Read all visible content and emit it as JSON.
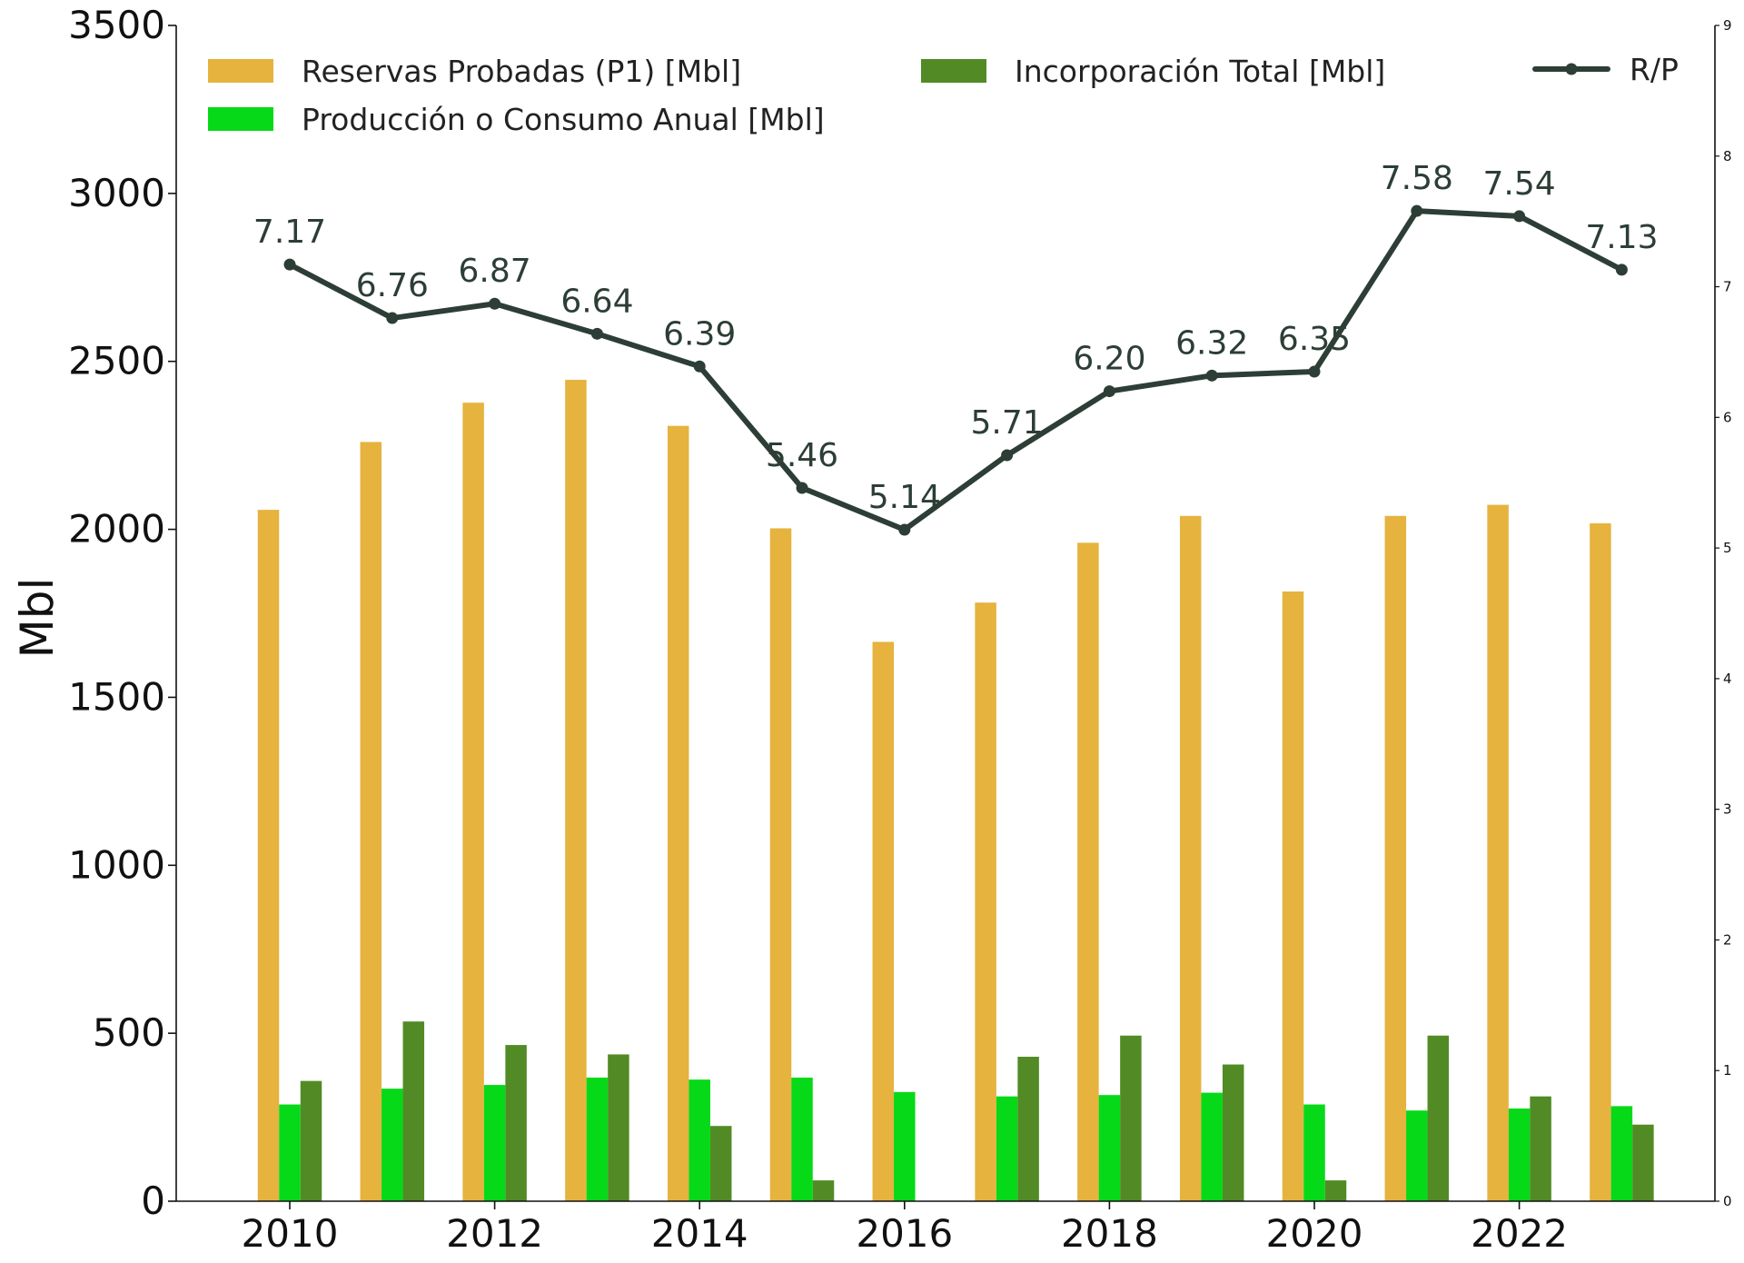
{
  "chart_data": {
    "type": "bar",
    "x": [
      2010,
      2011,
      2012,
      2013,
      2014,
      2015,
      2016,
      2017,
      2018,
      2019,
      2020,
      2021,
      2022,
      2023
    ],
    "xticks": [
      "2010",
      "2012",
      "2014",
      "2016",
      "2018",
      "2020",
      "2022"
    ],
    "ylabel": "Mbl",
    "ylim": [
      0,
      3500
    ],
    "yticks": [
      "0",
      "500",
      "1000",
      "1500",
      "2000",
      "2500",
      "3000",
      "3500"
    ],
    "y2lim": [
      0,
      9
    ],
    "y2ticks": [
      "0",
      "1",
      "2",
      "3",
      "4",
      "5",
      "6",
      "7",
      "8",
      "9"
    ],
    "grid": false,
    "legend_position": "top",
    "series": [
      {
        "name": "Reservas Probadas (P1) [Mbl]",
        "type": "bar",
        "axis": "left",
        "color": "#e5b33e",
        "values": [
          2058,
          2260,
          2377,
          2445,
          2308,
          2003,
          1665,
          1782,
          1960,
          2040,
          1815,
          2040,
          2073,
          2018
        ]
      },
      {
        "name": "Producción o Consumo Anual [Mbl]",
        "type": "bar",
        "axis": "left",
        "color": "#06d918",
        "values": [
          288,
          335,
          346,
          368,
          362,
          368,
          325,
          312,
          316,
          323,
          288,
          270,
          276,
          283
        ]
      },
      {
        "name": "Incorporación Total [Mbl]",
        "type": "bar",
        "axis": "left",
        "color": "#528b25",
        "values": [
          358,
          535,
          465,
          437,
          224,
          62,
          0,
          430,
          493,
          407,
          62,
          493,
          312,
          228
        ]
      },
      {
        "name": "R/P",
        "type": "line",
        "axis": "right",
        "color": "#2c3e35",
        "values": [
          7.17,
          6.76,
          6.87,
          6.64,
          6.39,
          5.46,
          5.14,
          5.71,
          6.2,
          6.32,
          6.35,
          7.58,
          7.54,
          7.13
        ],
        "labels": [
          "7.17",
          "6.76",
          "6.87",
          "6.64",
          "6.39",
          "5.46",
          "5.14",
          "5.71",
          "6.20",
          "6.32",
          "6.35",
          "7.58",
          "7.54",
          "7.13"
        ]
      }
    ]
  }
}
